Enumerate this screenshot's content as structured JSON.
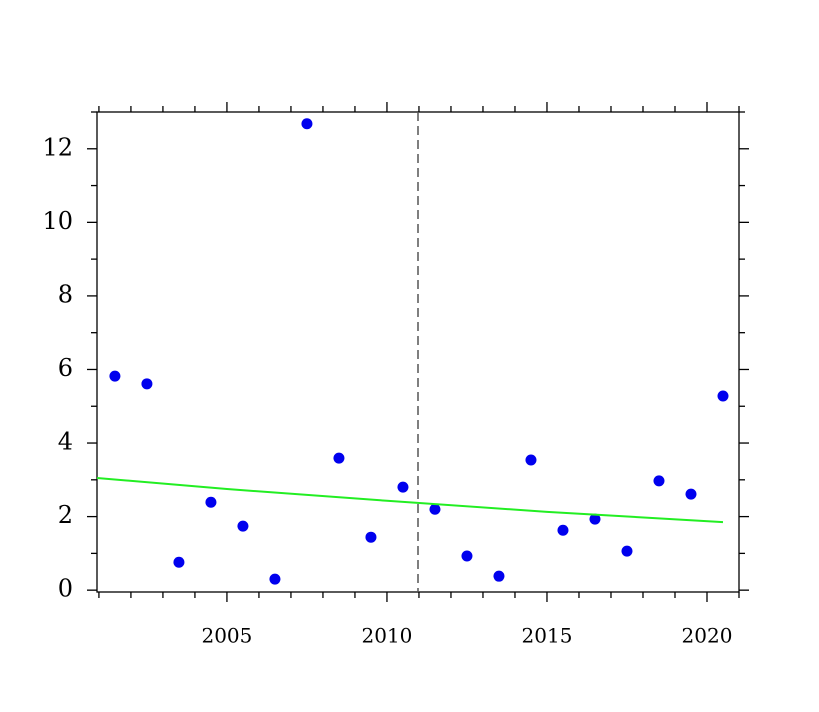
{
  "chart_data": {
    "type": "scatter",
    "series": [
      {
        "type": "scatter",
        "color": "#0000ee",
        "x": [
          2001.5,
          2002.5,
          2003.5,
          2004.5,
          2005.5,
          2006.5,
          2007.5,
          2008.5,
          2009.5,
          2010.5,
          2011.5,
          2012.5,
          2013.5,
          2014.5,
          2015.5,
          2016.5,
          2017.5,
          2018.5,
          2019.5,
          2020.5
        ],
        "values": [
          5.82,
          5.61,
          0.76,
          2.39,
          1.74,
          0.3,
          12.68,
          3.59,
          1.44,
          2.8,
          2.2,
          0.93,
          0.38,
          3.54,
          1.63,
          1.93,
          1.06,
          2.97,
          2.61,
          5.28
        ]
      },
      {
        "type": "line",
        "color": "#22ee22",
        "x": [
          2000.94,
          2005,
          2010,
          2015,
          2020.5
        ],
        "values": [
          3.05,
          2.75,
          2.43,
          2.13,
          1.85
        ]
      }
    ],
    "vline": 2010.97,
    "xlim": [
      2000.94,
      2021.0
    ],
    "ylim": [
      -0.05,
      13
    ],
    "xticks": [
      2005,
      2010,
      2015,
      2020
    ],
    "xminorticks": [
      2001,
      2002,
      2003,
      2004,
      2006,
      2007,
      2008,
      2009,
      2011,
      2012,
      2013,
      2014,
      2016,
      2017,
      2018,
      2019,
      2021
    ],
    "yticks": [
      0,
      2,
      4,
      6,
      8,
      10,
      12
    ],
    "yminorticks": [
      1,
      3,
      5,
      7,
      9,
      11,
      13
    ]
  }
}
